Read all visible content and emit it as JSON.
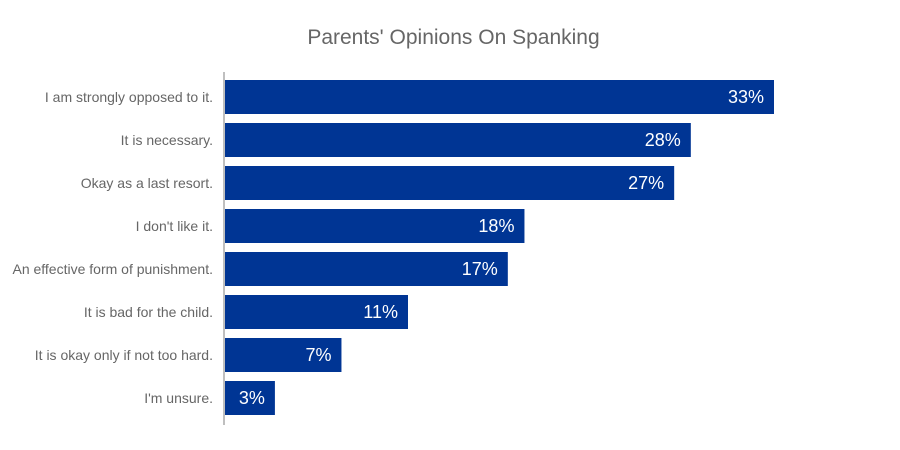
{
  "chart_data": {
    "type": "bar",
    "orientation": "horizontal",
    "title": "Parents' Opinions On Spanking",
    "xlabel": "",
    "ylabel": "",
    "categories": [
      "I am strongly opposed to it.",
      "It is necessary.",
      "Okay as a last resort.",
      "I don't like it.",
      "An effective form of punishment.",
      "It is bad for the child.",
      "It is okay only if not too hard.",
      "I'm unsure."
    ],
    "values": [
      33,
      28,
      27,
      18,
      17,
      11,
      7,
      3
    ],
    "value_labels": [
      "33%",
      "28%",
      "27%",
      "18%",
      "17%",
      "11%",
      "7%",
      "3%"
    ],
    "value_unit": "%",
    "xlim": [
      0,
      40
    ],
    "grid": false,
    "legend": "none",
    "colors": {
      "bar": "#003594",
      "bar_label": "#ffffff",
      "category_label": "#666666",
      "axis": "#aaaaaa",
      "title": "#666666"
    }
  }
}
